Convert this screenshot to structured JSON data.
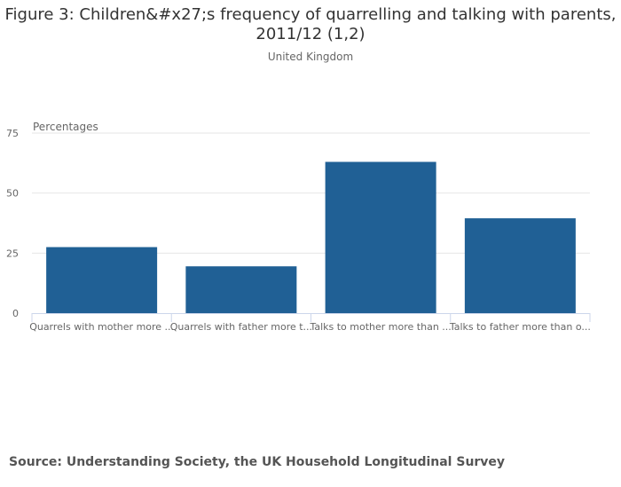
{
  "chart_data": {
    "type": "bar",
    "title_lines": [
      "Figure 3: Children&#x27;s frequency of quarrelling and talking with parents,",
      "2011/12 (1,2)"
    ],
    "subtitle": "United Kingdom",
    "ylabel": "Percentages",
    "ylim": [
      0,
      75
    ],
    "yticks": [
      0,
      25,
      50,
      75
    ],
    "grid": true,
    "categories": [
      "Quarrels with mother more ...",
      "Quarrels with father more t...",
      "Talks to mother more than ...",
      "Talks to father more than o..."
    ],
    "values": [
      27.5,
      19.5,
      63,
      39.5
    ],
    "color": "#206095",
    "gridColor": "#e6e6e6",
    "axisColor": "#ccd6eb"
  },
  "source": "Source: Understanding Society, the UK Household Longitudinal Survey"
}
